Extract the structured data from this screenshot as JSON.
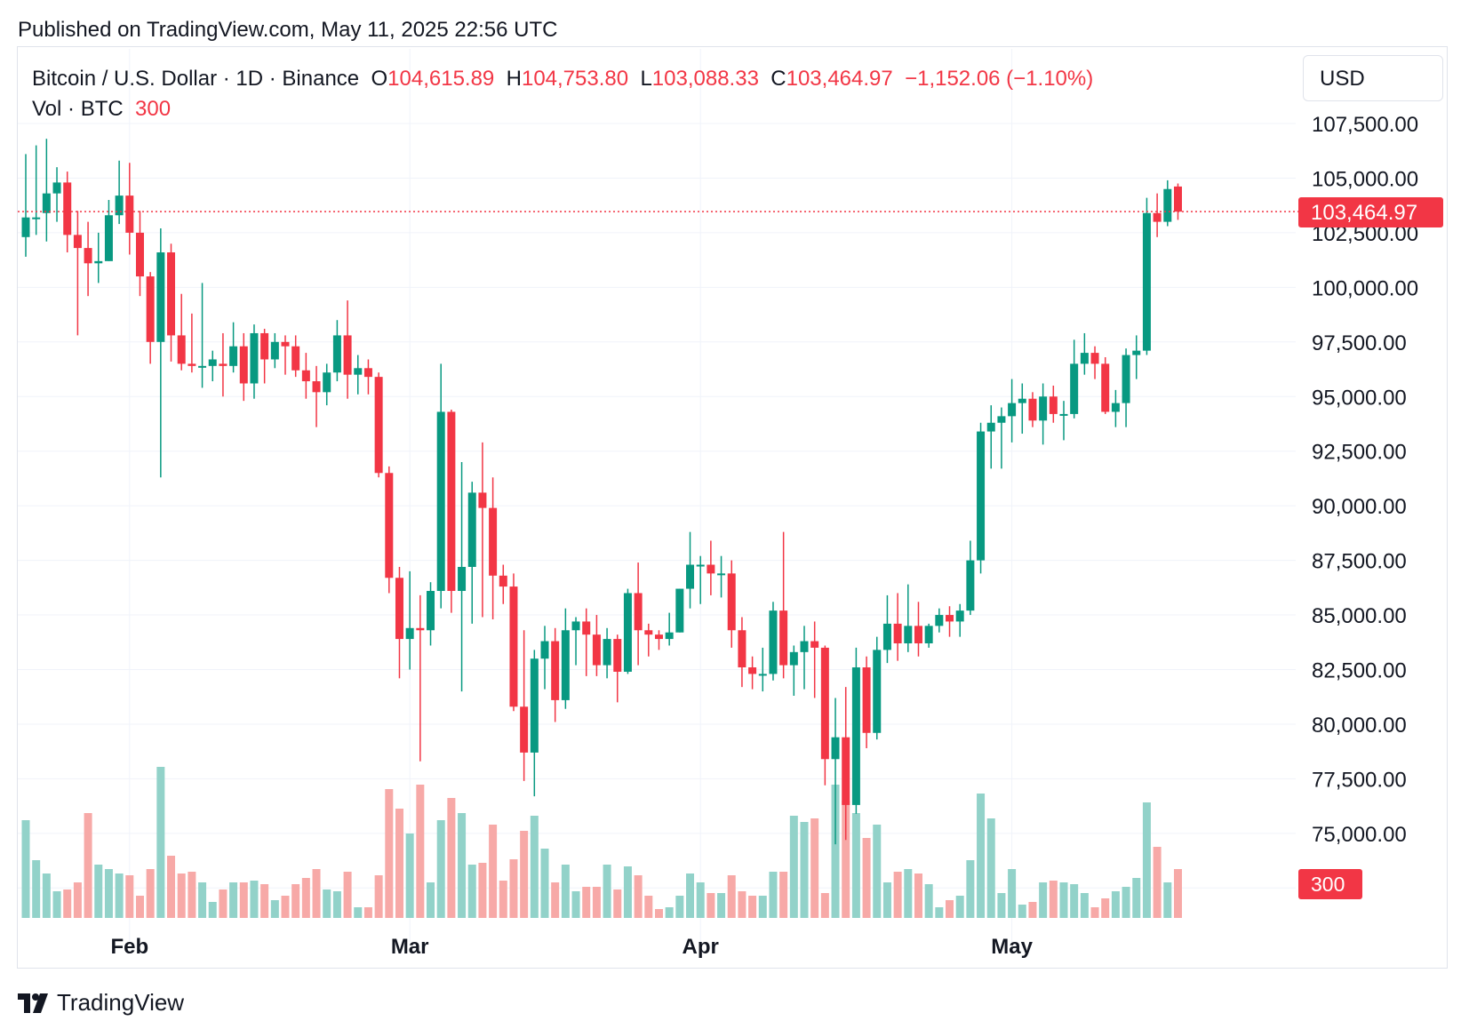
{
  "published": "Published on TradingView.com, May 11, 2025 22:56 UTC",
  "legend": {
    "symbol": "Bitcoin / U.S. Dollar · 1D · Binance",
    "o_label": "O",
    "o_value": "104,615.89",
    "h_label": "H",
    "h_value": "104,753.80",
    "l_label": "L",
    "l_value": "103,088.33",
    "c_label": "C",
    "c_value": "103,464.97",
    "change": "−1,152.06 (−1.10%)",
    "vol_label": "Vol · BTC",
    "vol_value": "300"
  },
  "currency": "USD",
  "last_price_label": "103,464.97",
  "last_volume_label": "300",
  "brand": "TradingView",
  "colors": {
    "up": "#089981",
    "down": "#f23645",
    "up_vol": "#92d2c9",
    "down_vol": "#f7a9a7",
    "grid": "#f0f3fa"
  },
  "chart_data": {
    "type": "candlestick",
    "title": "Bitcoin / U.S. Dollar · 1D · Binance",
    "y_ticks": [
      "107,500.00",
      "105,000.00",
      "102,500.00",
      "100,000.00",
      "97,500.00",
      "95,000.00",
      "92,500.00",
      "90,000.00",
      "87,500.00",
      "85,000.00",
      "82,500.00",
      "80,000.00",
      "77,500.00",
      "75,000.00"
    ],
    "y_tick_values": [
      107500,
      105000,
      102500,
      100000,
      97500,
      95000,
      92500,
      90000,
      87500,
      85000,
      82500,
      80000,
      77500,
      75000
    ],
    "ylim": [
      72500,
      110000
    ],
    "x_ticks": [
      {
        "label": "Feb",
        "index": 10
      },
      {
        "label": "Mar",
        "index": 37
      },
      {
        "label": "Apr",
        "index": 65
      },
      {
        "label": "May",
        "index": 95
      }
    ],
    "last_close": 103464.97,
    "candles": [
      {
        "o": 102300,
        "h": 106100,
        "l": 101400,
        "c": 103200,
        "v": 110
      },
      {
        "o": 103200,
        "h": 106500,
        "l": 102400,
        "c": 103200,
        "v": 65
      },
      {
        "o": 103400,
        "h": 106800,
        "l": 102100,
        "c": 104300,
        "v": 50
      },
      {
        "o": 104300,
        "h": 105500,
        "l": 103000,
        "c": 104800,
        "v": 30
      },
      {
        "o": 104800,
        "h": 105300,
        "l": 101600,
        "c": 102400,
        "v": 32
      },
      {
        "o": 102400,
        "h": 103500,
        "l": 97800,
        "c": 101800,
        "v": 40
      },
      {
        "o": 101800,
        "h": 103000,
        "l": 99600,
        "c": 101100,
        "v": 118
      },
      {
        "o": 101100,
        "h": 102500,
        "l": 100200,
        "c": 101200,
        "v": 60
      },
      {
        "o": 101200,
        "h": 104000,
        "l": 101200,
        "c": 103300,
        "v": 55
      },
      {
        "o": 103300,
        "h": 105800,
        "l": 102900,
        "c": 104200,
        "v": 50
      },
      {
        "o": 104200,
        "h": 105700,
        "l": 101500,
        "c": 102500,
        "v": 48
      },
      {
        "o": 102500,
        "h": 103500,
        "l": 99600,
        "c": 100500,
        "v": 25
      },
      {
        "o": 100500,
        "h": 100700,
        "l": 96500,
        "c": 97500,
        "v": 55
      },
      {
        "o": 97500,
        "h": 102700,
        "l": 91300,
        "c": 101600,
        "v": 170
      },
      {
        "o": 101600,
        "h": 102000,
        "l": 96600,
        "c": 97800,
        "v": 70
      },
      {
        "o": 97800,
        "h": 99700,
        "l": 96200,
        "c": 96500,
        "v": 50
      },
      {
        "o": 96500,
        "h": 98800,
        "l": 96100,
        "c": 96400,
        "v": 52
      },
      {
        "o": 96400,
        "h": 100200,
        "l": 95400,
        "c": 96400,
        "v": 40
      },
      {
        "o": 96400,
        "h": 97100,
        "l": 95700,
        "c": 96700,
        "v": 18
      },
      {
        "o": 96500,
        "h": 97900,
        "l": 95000,
        "c": 96400,
        "v": 32
      },
      {
        "o": 96400,
        "h": 98400,
        "l": 96100,
        "c": 97300,
        "v": 40
      },
      {
        "o": 97300,
        "h": 97900,
        "l": 94800,
        "c": 95600,
        "v": 40
      },
      {
        "o": 95600,
        "h": 98300,
        "l": 94900,
        "c": 97900,
        "v": 42
      },
      {
        "o": 97900,
        "h": 98100,
        "l": 95600,
        "c": 96700,
        "v": 38
      },
      {
        "o": 96700,
        "h": 97900,
        "l": 96300,
        "c": 97500,
        "v": 20
      },
      {
        "o": 97500,
        "h": 97800,
        "l": 96000,
        "c": 97300,
        "v": 25
      },
      {
        "o": 97300,
        "h": 97800,
        "l": 95900,
        "c": 96200,
        "v": 38
      },
      {
        "o": 96200,
        "h": 97000,
        "l": 94900,
        "c": 95700,
        "v": 45
      },
      {
        "o": 95700,
        "h": 96400,
        "l": 93600,
        "c": 95200,
        "v": 55
      },
      {
        "o": 95200,
        "h": 96500,
        "l": 94600,
        "c": 96100,
        "v": 32
      },
      {
        "o": 96100,
        "h": 98500,
        "l": 95700,
        "c": 97800,
        "v": 30
      },
      {
        "o": 97800,
        "h": 99400,
        "l": 94900,
        "c": 96000,
        "v": 52
      },
      {
        "o": 96000,
        "h": 96900,
        "l": 95100,
        "c": 96300,
        "v": 12
      },
      {
        "o": 96300,
        "h": 96700,
        "l": 95100,
        "c": 95900,
        "v": 12
      },
      {
        "o": 95900,
        "h": 96100,
        "l": 91300,
        "c": 91500,
        "v": 48
      },
      {
        "o": 91500,
        "h": 91800,
        "l": 86000,
        "c": 86700,
        "v": 145
      },
      {
        "o": 86700,
        "h": 87200,
        "l": 82100,
        "c": 83900,
        "v": 123
      },
      {
        "o": 83900,
        "h": 87000,
        "l": 82500,
        "c": 84400,
        "v": 95
      },
      {
        "o": 84400,
        "h": 85900,
        "l": 78300,
        "c": 84300,
        "v": 150
      },
      {
        "o": 84300,
        "h": 86500,
        "l": 83600,
        "c": 86100,
        "v": 40
      },
      {
        "o": 86100,
        "h": 96500,
        "l": 85300,
        "c": 94300,
        "v": 110
      },
      {
        "o": 94300,
        "h": 94400,
        "l": 85100,
        "c": 86100,
        "v": 135
      },
      {
        "o": 86100,
        "h": 92000,
        "l": 81500,
        "c": 87200,
        "v": 118
      },
      {
        "o": 87200,
        "h": 91100,
        "l": 84600,
        "c": 90600,
        "v": 60
      },
      {
        "o": 90600,
        "h": 92900,
        "l": 84900,
        "c": 89900,
        "v": 62
      },
      {
        "o": 89900,
        "h": 91300,
        "l": 84800,
        "c": 86800,
        "v": 105
      },
      {
        "o": 86800,
        "h": 87300,
        "l": 85500,
        "c": 86300,
        "v": 42
      },
      {
        "o": 86300,
        "h": 86900,
        "l": 80600,
        "c": 80800,
        "v": 66
      },
      {
        "o": 80800,
        "h": 84300,
        "l": 77400,
        "c": 78700,
        "v": 98
      },
      {
        "o": 78700,
        "h": 83400,
        "l": 76700,
        "c": 83000,
        "v": 115
      },
      {
        "o": 83000,
        "h": 84500,
        "l": 81600,
        "c": 83800,
        "v": 78
      },
      {
        "o": 83800,
        "h": 84400,
        "l": 80100,
        "c": 81100,
        "v": 40
      },
      {
        "o": 81100,
        "h": 85300,
        "l": 80700,
        "c": 84300,
        "v": 60
      },
      {
        "o": 84300,
        "h": 84900,
        "l": 82700,
        "c": 84700,
        "v": 30
      },
      {
        "o": 84700,
        "h": 85300,
        "l": 82200,
        "c": 84100,
        "v": 35
      },
      {
        "o": 84100,
        "h": 85000,
        "l": 82200,
        "c": 82700,
        "v": 35
      },
      {
        "o": 82700,
        "h": 84400,
        "l": 82100,
        "c": 83900,
        "v": 60
      },
      {
        "o": 83900,
        "h": 84100,
        "l": 81000,
        "c": 82400,
        "v": 32
      },
      {
        "o": 82400,
        "h": 86200,
        "l": 82300,
        "c": 86000,
        "v": 58
      },
      {
        "o": 86000,
        "h": 87400,
        "l": 82700,
        "c": 84300,
        "v": 48
      },
      {
        "o": 84300,
        "h": 84600,
        "l": 83100,
        "c": 84100,
        "v": 25
      },
      {
        "o": 84100,
        "h": 84300,
        "l": 83400,
        "c": 83900,
        "v": 10
      },
      {
        "o": 83900,
        "h": 85100,
        "l": 83600,
        "c": 84200,
        "v": 12
      },
      {
        "o": 84200,
        "h": 86200,
        "l": 84200,
        "c": 86200,
        "v": 25
      },
      {
        "o": 86200,
        "h": 88800,
        "l": 85300,
        "c": 87300,
        "v": 50
      },
      {
        "o": 87300,
        "h": 87700,
        "l": 85500,
        "c": 87300,
        "v": 40
      },
      {
        "o": 87300,
        "h": 88400,
        "l": 85900,
        "c": 86900,
        "v": 28
      },
      {
        "o": 86900,
        "h": 87700,
        "l": 85800,
        "c": 86900,
        "v": 28
      },
      {
        "o": 86900,
        "h": 87500,
        "l": 83500,
        "c": 84300,
        "v": 48
      },
      {
        "o": 84300,
        "h": 84900,
        "l": 81700,
        "c": 82600,
        "v": 30
      },
      {
        "o": 82600,
        "h": 83100,
        "l": 81600,
        "c": 82300,
        "v": 25
      },
      {
        "o": 82300,
        "h": 83500,
        "l": 81500,
        "c": 82300,
        "v": 25
      },
      {
        "o": 82300,
        "h": 85600,
        "l": 82000,
        "c": 85200,
        "v": 52
      },
      {
        "o": 85200,
        "h": 88800,
        "l": 82100,
        "c": 82700,
        "v": 52
      },
      {
        "o": 82700,
        "h": 83600,
        "l": 81300,
        "c": 83300,
        "v": 115
      },
      {
        "o": 83300,
        "h": 84500,
        "l": 81600,
        "c": 83800,
        "v": 108
      },
      {
        "o": 83800,
        "h": 84700,
        "l": 81200,
        "c": 83500,
        "v": 112
      },
      {
        "o": 83500,
        "h": 83600,
        "l": 77200,
        "c": 78400,
        "v": 28
      },
      {
        "o": 78400,
        "h": 81200,
        "l": 74500,
        "c": 79400,
        "v": 150
      },
      {
        "o": 79400,
        "h": 81700,
        "l": 74700,
        "c": 76300,
        "v": 132
      },
      {
        "o": 76300,
        "h": 83500,
        "l": 75900,
        "c": 82600,
        "v": 118
      },
      {
        "o": 82600,
        "h": 83100,
        "l": 78900,
        "c": 79600,
        "v": 90
      },
      {
        "o": 79600,
        "h": 84000,
        "l": 79300,
        "c": 83400,
        "v": 105
      },
      {
        "o": 83400,
        "h": 85900,
        "l": 82800,
        "c": 84600,
        "v": 40
      },
      {
        "o": 84600,
        "h": 86000,
        "l": 82900,
        "c": 83700,
        "v": 52
      },
      {
        "o": 83700,
        "h": 86400,
        "l": 83300,
        "c": 84500,
        "v": 55
      },
      {
        "o": 84500,
        "h": 85600,
        "l": 83100,
        "c": 83700,
        "v": 50
      },
      {
        "o": 83700,
        "h": 84600,
        "l": 83500,
        "c": 84500,
        "v": 38
      },
      {
        "o": 84500,
        "h": 85300,
        "l": 84200,
        "c": 85000,
        "v": 12
      },
      {
        "o": 85000,
        "h": 85400,
        "l": 84000,
        "c": 84700,
        "v": 20
      },
      {
        "o": 84700,
        "h": 85500,
        "l": 84000,
        "c": 85200,
        "v": 25
      },
      {
        "o": 85200,
        "h": 88400,
        "l": 85000,
        "c": 87500,
        "v": 65
      },
      {
        "o": 87500,
        "h": 93800,
        "l": 86900,
        "c": 93400,
        "v": 140
      },
      {
        "o": 93400,
        "h": 94600,
        "l": 91700,
        "c": 93800,
        "v": 112
      },
      {
        "o": 93800,
        "h": 94500,
        "l": 91700,
        "c": 94100,
        "v": 28
      },
      {
        "o": 94100,
        "h": 95800,
        "l": 92900,
        "c": 94700,
        "v": 55
      },
      {
        "o": 94700,
        "h": 95600,
        "l": 93300,
        "c": 94900,
        "v": 15
      },
      {
        "o": 94900,
        "h": 95200,
        "l": 93600,
        "c": 93900,
        "v": 18
      },
      {
        "o": 93900,
        "h": 95600,
        "l": 92800,
        "c": 95000,
        "v": 40
      },
      {
        "o": 95000,
        "h": 95500,
        "l": 93800,
        "c": 94200,
        "v": 42
      },
      {
        "o": 94200,
        "h": 94800,
        "l": 93000,
        "c": 94200,
        "v": 40
      },
      {
        "o": 94200,
        "h": 97600,
        "l": 94000,
        "c": 96500,
        "v": 38
      },
      {
        "o": 96500,
        "h": 97900,
        "l": 96000,
        "c": 97000,
        "v": 28
      },
      {
        "o": 97000,
        "h": 97300,
        "l": 95800,
        "c": 96500,
        "v": 12
      },
      {
        "o": 96500,
        "h": 96800,
        "l": 94200,
        "c": 94300,
        "v": 22
      },
      {
        "o": 94300,
        "h": 95300,
        "l": 93600,
        "c": 94700,
        "v": 30
      },
      {
        "o": 94700,
        "h": 97200,
        "l": 93600,
        "c": 96900,
        "v": 35
      },
      {
        "o": 96900,
        "h": 97800,
        "l": 95800,
        "c": 97100,
        "v": 45
      },
      {
        "o": 97100,
        "h": 104100,
        "l": 96900,
        "c": 103400,
        "v": 130
      },
      {
        "o": 103400,
        "h": 104300,
        "l": 102300,
        "c": 103000,
        "v": 80
      },
      {
        "o": 103000,
        "h": 104900,
        "l": 102800,
        "c": 104500,
        "v": 40
      },
      {
        "o": 104615.89,
        "h": 104753.8,
        "l": 103088.33,
        "c": 103464.97,
        "v": 55
      }
    ]
  }
}
